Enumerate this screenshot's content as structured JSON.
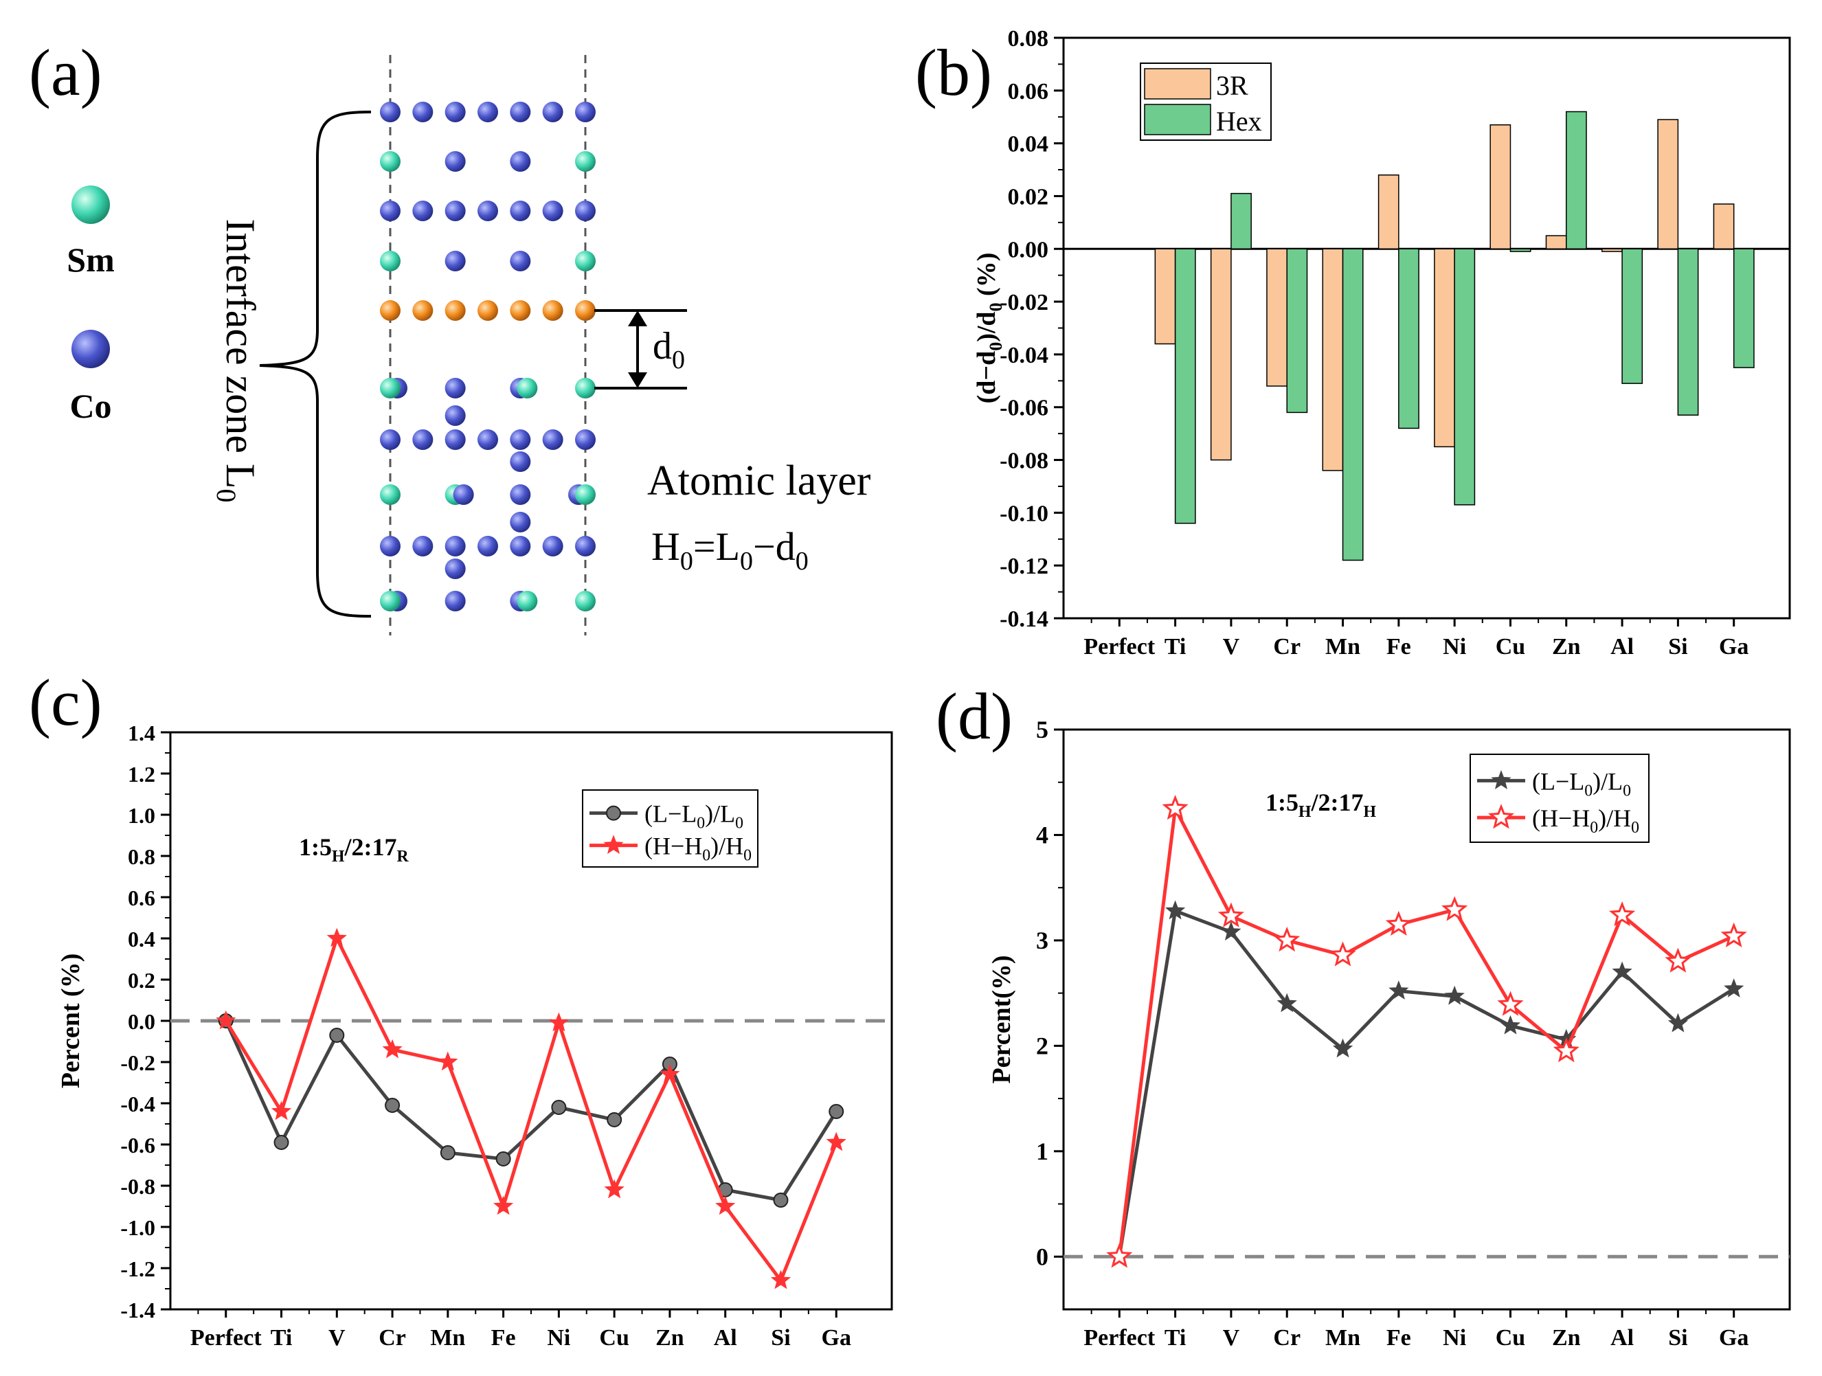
{
  "panels": {
    "a": {
      "label": "(a)"
    },
    "b": {
      "label": "(b)"
    },
    "c": {
      "label": "(c)"
    },
    "d": {
      "label": "(d)"
    }
  },
  "diagram_a": {
    "legend_sm": "Sm",
    "legend_co": "Co",
    "zone_label": "Interface zone L",
    "zone_sub": "0",
    "d0_label": "d",
    "d0_sub": "0",
    "atomic_line1": "Atomic layer",
    "atomic_h": "H",
    "atomic_h_sub": "0",
    "atomic_eq": "=L",
    "atomic_eq_sub": "0",
    "atomic_minus": "−d",
    "atomic_minus_sub": "0",
    "colors": {
      "sm": "#3fd6b0",
      "co": "#4a55cc",
      "interface": "#f08a1c"
    }
  },
  "chart_data": [
    {
      "id": "b",
      "type": "bar",
      "categories": [
        "Perfect",
        "Ti",
        "V",
        "Cr",
        "Mn",
        "Fe",
        "Ni",
        "Cu",
        "Zn",
        "Al",
        "Si",
        "Ga"
      ],
      "series": [
        {
          "name": "3R",
          "color": "#fbc79a",
          "values": [
            null,
            -0.036,
            -0.08,
            -0.052,
            -0.084,
            0.028,
            -0.075,
            0.047,
            0.005,
            -0.001,
            0.049,
            0.017
          ]
        },
        {
          "name": "Hex",
          "color": "#6dcc8e",
          "values": [
            null,
            -0.104,
            0.021,
            -0.062,
            -0.118,
            -0.068,
            -0.097,
            -0.001,
            0.052,
            -0.051,
            -0.063,
            -0.045
          ]
        }
      ],
      "ylabel": "(d−d",
      "ylabel_sub1": "0",
      "ylabel_mid": ")/d",
      "ylabel_sub2": "0",
      "ylabel_end": " (%)",
      "ylim": [
        -0.14,
        0.08
      ],
      "yticks": [
        "-0.14",
        "-0.12",
        "-0.10",
        "-0.08",
        "-0.06",
        "-0.04",
        "-0.02",
        "0.00",
        "0.02",
        "0.04",
        "0.06",
        "0.08"
      ],
      "legend": "top-left"
    },
    {
      "id": "c",
      "type": "line",
      "categories": [
        "Perfect",
        "Ti",
        "V",
        "Cr",
        "Mn",
        "Fe",
        "Ni",
        "Cu",
        "Zn",
        "Al",
        "Si",
        "Ga"
      ],
      "series": [
        {
          "name": "(L−L",
          "sub": "0",
          "tail": ")/L",
          "sub2": "0",
          "color": "#444444",
          "marker": "sphere",
          "values": [
            0.0,
            -0.59,
            -0.07,
            -0.41,
            -0.64,
            -0.67,
            -0.42,
            -0.48,
            -0.21,
            -0.82,
            -0.87,
            -0.44
          ]
        },
        {
          "name": "(H−H",
          "sub": "0",
          "tail": ")/H",
          "sub2": "0",
          "color": "#ff3333",
          "marker": "star-filled",
          "values": [
            0.0,
            -0.44,
            0.4,
            -0.14,
            -0.2,
            -0.9,
            -0.01,
            -0.82,
            -0.26,
            -0.9,
            -1.26,
            -0.59
          ]
        }
      ],
      "annotation": "1:5",
      "annotation_sub1": "H",
      "annotation_mid": "/2:17",
      "annotation_sub2": "R",
      "ylabel": "Percent (%)",
      "ylim": [
        -1.4,
        1.4
      ],
      "yticks": [
        "-1.4",
        "-1.2",
        "-1.0",
        "-0.8",
        "-0.6",
        "-0.4",
        "-0.2",
        "0.0",
        "0.2",
        "0.4",
        "0.6",
        "0.8",
        "1.0",
        "1.2",
        "1.4"
      ],
      "zero_line": "dashed",
      "legend": "upper-right"
    },
    {
      "id": "d",
      "type": "line",
      "categories": [
        "Perfect",
        "Ti",
        "V",
        "Cr",
        "Mn",
        "Fe",
        "Ni",
        "Cu",
        "Zn",
        "Al",
        "Si",
        "Ga"
      ],
      "series": [
        {
          "name": "(L−L",
          "sub": "0",
          "tail": ")/L",
          "sub2": "0",
          "color": "#444444",
          "marker": "star-filled",
          "values": [
            0.0,
            3.28,
            3.08,
            2.4,
            1.97,
            2.52,
            2.47,
            2.19,
            2.06,
            2.7,
            2.21,
            2.54
          ]
        },
        {
          "name": "(H−H",
          "sub": "0",
          "tail": ")/H",
          "sub2": "0",
          "color": "#ff3333",
          "marker": "star-open",
          "values": [
            0.0,
            4.25,
            3.23,
            3.0,
            2.86,
            3.15,
            3.29,
            2.39,
            1.95,
            3.24,
            2.8,
            3.04
          ]
        }
      ],
      "annotation": "1:5",
      "annotation_sub1": "H",
      "annotation_mid": "/2:17",
      "annotation_sub2": "H",
      "ylabel": "Percent(%)",
      "ylim": [
        -0.5,
        5
      ],
      "yticks": [
        "0",
        "1",
        "2",
        "3",
        "4",
        "5"
      ],
      "zero_line": "dashed",
      "legend": "upper-right"
    }
  ]
}
